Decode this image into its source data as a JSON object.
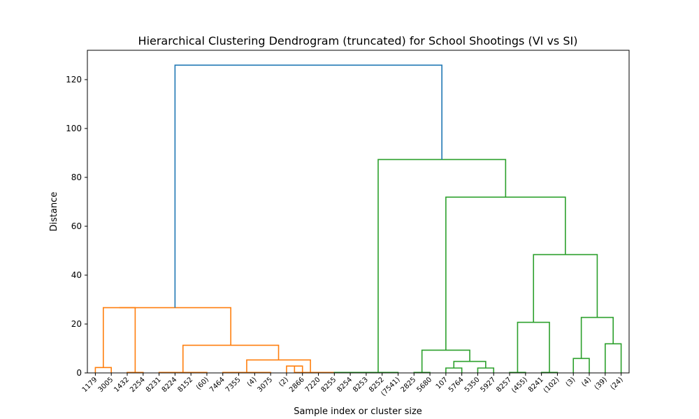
{
  "chart_data": {
    "type": "dendrogram",
    "title": "Hierarchical Clustering Dendrogram (truncated) for School Shootings (VI vs SI)",
    "xlabel": "Sample index or cluster size",
    "ylabel": "Distance",
    "ylim": [
      0,
      132
    ],
    "yticks": [
      0,
      20,
      40,
      60,
      80,
      100,
      120
    ],
    "leaves": [
      "1179",
      "3005",
      "1432",
      "2254",
      "8231",
      "8224",
      "8152",
      "(60)",
      "7464",
      "7355",
      "(4)",
      "3075",
      "(2)",
      "2866",
      "7220",
      "8255",
      "8254",
      "8253",
      "8252",
      "(7541)",
      "2825",
      "5680",
      "107",
      "5764",
      "5350",
      "5927",
      "8257",
      "(455)",
      "8241",
      "(102)",
      "(3)",
      "(4)",
      "(39)",
      "(24)"
    ],
    "links": [
      {
        "left": 0,
        "right": 1,
        "height": 2.2,
        "color": "#ff7f0e"
      },
      {
        "left": 2,
        "right": 3,
        "height": 0.2,
        "color": "#ff7f0e"
      },
      {
        "left": "c0",
        "right": "c1",
        "height": 26.7,
        "color": "#ff7f0e"
      },
      {
        "left": 4,
        "right": 5,
        "height": 0.2,
        "color": "#ff7f0e"
      },
      {
        "left": 6,
        "right": 7,
        "height": 0.2,
        "color": "#ff7f0e"
      },
      {
        "left": "c3",
        "right": "c4",
        "height": 0.2,
        "color": "#ff7f0e"
      },
      {
        "left": 8,
        "right": 9,
        "height": 0.2,
        "color": "#ff7f0e"
      },
      {
        "left": 10,
        "right": 11,
        "height": 0.2,
        "color": "#ff7f0e"
      },
      {
        "left": "c6",
        "right": "c7",
        "height": 0.2,
        "color": "#ff7f0e"
      },
      {
        "left": 12,
        "right": 13,
        "height": 2.8,
        "color": "#ff7f0e"
      },
      {
        "left": 14,
        "right": 15,
        "height": 0.2,
        "color": "#ff7f0e"
      },
      {
        "left": "c9",
        "right": "c10",
        "height": 0.2,
        "color": "#ff7f0e"
      },
      {
        "left": "c8",
        "right": "c11",
        "height": 5.3,
        "color": "#ff7f0e"
      },
      {
        "left": "c5",
        "right": "c12",
        "height": 11.3,
        "color": "#ff7f0e"
      },
      {
        "left": "c2",
        "right": "c13",
        "height": 26.7,
        "color": "#ff7f0e"
      },
      {
        "left": 15,
        "right": 16,
        "height": 0.2,
        "color": "#2ca02c"
      },
      {
        "left": 17,
        "right": 18,
        "height": 0.2,
        "color": "#2ca02c"
      },
      {
        "left": "c15",
        "right": "c16",
        "height": 0.2,
        "color": "#2ca02c"
      },
      {
        "left": "c17",
        "right": 19,
        "height": 0.2,
        "color": "#2ca02c"
      },
      {
        "left": 20,
        "right": 21,
        "height": 0.2,
        "color": "#2ca02c"
      },
      {
        "left": 22,
        "right": 23,
        "height": 2.0,
        "color": "#2ca02c"
      },
      {
        "left": 24,
        "right": 25,
        "height": 2.0,
        "color": "#2ca02c"
      },
      {
        "left": "c20",
        "right": "c21",
        "height": 4.7,
        "color": "#2ca02c"
      },
      {
        "left": "c19",
        "right": "c22",
        "height": 9.3,
        "color": "#2ca02c"
      },
      {
        "left": 26,
        "right": 27,
        "height": 0.2,
        "color": "#2ca02c"
      },
      {
        "left": 28,
        "right": 29,
        "height": 0.2,
        "color": "#2ca02c"
      },
      {
        "left": "c24",
        "right": "c25",
        "height": 20.7,
        "color": "#2ca02c"
      },
      {
        "left": 30,
        "right": 31,
        "height": 5.9,
        "color": "#2ca02c"
      },
      {
        "left": 32,
        "right": 33,
        "height": 11.9,
        "color": "#2ca02c"
      },
      {
        "left": "c27",
        "right": "c28",
        "height": 22.7,
        "color": "#2ca02c"
      },
      {
        "left": "c26",
        "right": "c29",
        "height": 48.4,
        "color": "#2ca02c"
      },
      {
        "left": "c23",
        "right": "c30",
        "height": 71.9,
        "color": "#2ca02c"
      },
      {
        "left": "c18",
        "right": "c31",
        "height": 87.3,
        "color": "#2ca02c"
      },
      {
        "left": "c14",
        "right": "c32",
        "height": 125.9,
        "color": "#1f77b4"
      }
    ],
    "grid": false,
    "colors": {
      "cluster_a": "#ff7f0e",
      "cluster_b": "#2ca02c",
      "root": "#1f77b4"
    }
  }
}
